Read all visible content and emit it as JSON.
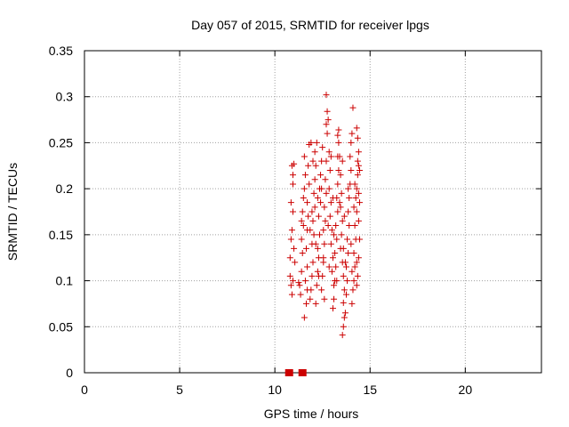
{
  "chart_data": {
    "type": "scatter",
    "title": "Day 057 of 2015, SRMTID for receiver lpgs",
    "xlabel": "GPS time / hours",
    "ylabel": "SRMTID / TECUs",
    "xlim": [
      0,
      24
    ],
    "ylim": [
      0,
      0.35
    ],
    "x_ticks": [
      "0",
      "5",
      "10",
      "15",
      "20"
    ],
    "y_ticks": [
      "0",
      "0.05",
      "0.1",
      "0.15",
      "0.2",
      "0.25",
      "0.3",
      "0.35"
    ],
    "grid": true,
    "legend": "none",
    "colors": {
      "points": "#cc0000",
      "grid": "#a0a0a0",
      "axes": "#000000"
    },
    "baseline_markers": {
      "marker": "square",
      "points": [
        [
          10.75,
          0
        ],
        [
          11.45,
          0
        ]
      ]
    },
    "series": [
      {
        "marker": "plus",
        "points": [
          [
            10.8,
            0.125
          ],
          [
            10.8,
            0.105
          ],
          [
            10.85,
            0.095
          ],
          [
            10.9,
            0.085
          ],
          [
            10.95,
            0.1
          ],
          [
            10.85,
            0.145
          ],
          [
            10.9,
            0.155
          ],
          [
            10.95,
            0.175
          ],
          [
            10.85,
            0.185
          ],
          [
            10.95,
            0.205
          ],
          [
            10.9,
            0.225
          ],
          [
            11.0,
            0.227
          ],
          [
            10.95,
            0.215
          ],
          [
            11.05,
            0.12
          ],
          [
            11.0,
            0.135
          ],
          [
            11.3,
            0.095
          ],
          [
            11.35,
            0.085
          ],
          [
            11.4,
            0.11
          ],
          [
            11.45,
            0.13
          ],
          [
            11.4,
            0.145
          ],
          [
            11.5,
            0.16
          ],
          [
            11.45,
            0.175
          ],
          [
            11.5,
            0.19
          ],
          [
            11.55,
            0.2
          ],
          [
            11.6,
            0.215
          ],
          [
            11.55,
            0.06
          ],
          [
            11.65,
            0.075
          ],
          [
            11.6,
            0.1
          ],
          [
            11.7,
            0.115
          ],
          [
            11.65,
            0.135
          ],
          [
            11.7,
            0.155
          ],
          [
            11.75,
            0.17
          ],
          [
            11.7,
            0.185
          ],
          [
            11.8,
            0.205
          ],
          [
            11.75,
            0.225
          ],
          [
            11.8,
            0.248
          ],
          [
            11.9,
            0.25
          ],
          [
            11.85,
            0.08
          ],
          [
            11.9,
            0.09
          ],
          [
            11.95,
            0.105
          ],
          [
            12.0,
            0.12
          ],
          [
            11.95,
            0.14
          ],
          [
            12.05,
            0.15
          ],
          [
            12.0,
            0.165
          ],
          [
            12.1,
            0.18
          ],
          [
            12.05,
            0.195
          ],
          [
            12.1,
            0.21
          ],
          [
            12.15,
            0.225
          ],
          [
            12.1,
            0.24
          ],
          [
            12.2,
            0.25
          ],
          [
            12.15,
            0.075
          ],
          [
            12.2,
            0.095
          ],
          [
            12.25,
            0.11
          ],
          [
            12.3,
            0.125
          ],
          [
            12.25,
            0.135
          ],
          [
            12.35,
            0.15
          ],
          [
            12.3,
            0.17
          ],
          [
            12.4,
            0.185
          ],
          [
            12.35,
            0.2
          ],
          [
            12.4,
            0.215
          ],
          [
            12.45,
            0.23
          ],
          [
            12.5,
            0.245
          ],
          [
            12.45,
            0.09
          ],
          [
            12.5,
            0.105
          ],
          [
            12.55,
            0.12
          ],
          [
            12.6,
            0.14
          ],
          [
            12.55,
            0.155
          ],
          [
            12.65,
            0.165
          ],
          [
            12.6,
            0.18
          ],
          [
            12.7,
            0.195
          ],
          [
            12.65,
            0.21
          ],
          [
            12.7,
            0.23
          ],
          [
            12.75,
            0.26
          ],
          [
            12.7,
            0.27
          ],
          [
            12.75,
            0.284
          ],
          [
            12.7,
            0.302
          ],
          [
            12.8,
            0.275
          ],
          [
            12.85,
            0.24
          ],
          [
            12.9,
            0.22
          ],
          [
            12.85,
            0.2
          ],
          [
            12.95,
            0.185
          ],
          [
            12.9,
            0.17
          ],
          [
            13.0,
            0.155
          ],
          [
            12.95,
            0.14
          ],
          [
            13.05,
            0.125
          ],
          [
            13.0,
            0.11
          ],
          [
            13.1,
            0.095
          ],
          [
            13.05,
            0.07
          ],
          [
            13.1,
            0.08
          ],
          [
            13.15,
            0.1
          ],
          [
            13.2,
            0.115
          ],
          [
            13.15,
            0.13
          ],
          [
            13.25,
            0.145
          ],
          [
            13.2,
            0.16
          ],
          [
            13.3,
            0.175
          ],
          [
            13.25,
            0.19
          ],
          [
            13.3,
            0.205
          ],
          [
            13.35,
            0.22
          ],
          [
            13.3,
            0.235
          ],
          [
            13.35,
            0.25
          ],
          [
            13.3,
            0.258
          ],
          [
            13.35,
            0.264
          ],
          [
            13.4,
            0.235
          ],
          [
            13.45,
            0.215
          ],
          [
            13.5,
            0.195
          ],
          [
            13.45,
            0.18
          ],
          [
            13.55,
            0.165
          ],
          [
            13.5,
            0.15
          ],
          [
            13.6,
            0.135
          ],
          [
            13.55,
            0.12
          ],
          [
            13.6,
            0.105
          ],
          [
            13.65,
            0.09
          ],
          [
            13.6,
            0.076
          ],
          [
            13.65,
            0.06
          ],
          [
            13.6,
            0.05
          ],
          [
            13.55,
            0.041
          ],
          [
            13.7,
            0.065
          ],
          [
            13.75,
            0.085
          ],
          [
            13.8,
            0.1
          ],
          [
            13.75,
            0.115
          ],
          [
            13.85,
            0.13
          ],
          [
            13.8,
            0.145
          ],
          [
            13.9,
            0.16
          ],
          [
            13.85,
            0.175
          ],
          [
            13.9,
            0.19
          ],
          [
            13.95,
            0.205
          ],
          [
            14.0,
            0.22
          ],
          [
            13.95,
            0.235
          ],
          [
            14.0,
            0.25
          ],
          [
            14.05,
            0.26
          ],
          [
            14.1,
            0.288
          ],
          [
            14.05,
            0.075
          ],
          [
            14.1,
            0.09
          ],
          [
            14.15,
            0.1
          ],
          [
            14.2,
            0.115
          ],
          [
            14.15,
            0.13
          ],
          [
            14.25,
            0.145
          ],
          [
            14.2,
            0.16
          ],
          [
            14.3,
            0.175
          ],
          [
            14.25,
            0.19
          ],
          [
            14.3,
            0.2
          ],
          [
            14.35,
            0.215
          ],
          [
            14.4,
            0.225
          ],
          [
            14.35,
            0.23
          ],
          [
            14.45,
            0.22
          ],
          [
            14.4,
            0.24
          ],
          [
            14.35,
            0.255
          ],
          [
            14.3,
            0.266
          ],
          [
            14.4,
            0.165
          ],
          [
            14.45,
            0.145
          ],
          [
            14.4,
            0.125
          ],
          [
            14.35,
            0.105
          ],
          [
            14.3,
            0.095
          ],
          [
            14.45,
            0.185
          ],
          [
            14.4,
            0.195
          ],
          [
            11.25,
            0.098
          ],
          [
            11.4,
            0.165
          ],
          [
            11.55,
            0.235
          ],
          [
            11.7,
            0.09
          ],
          [
            11.85,
            0.155
          ],
          [
            12.0,
            0.23
          ],
          [
            12.15,
            0.14
          ],
          [
            12.3,
            0.105
          ],
          [
            12.45,
            0.2
          ],
          [
            12.6,
            0.08
          ],
          [
            12.8,
            0.16
          ],
          [
            12.95,
            0.235
          ],
          [
            13.1,
            0.15
          ],
          [
            13.25,
            0.1
          ],
          [
            13.4,
            0.185
          ],
          [
            13.55,
            0.23
          ],
          [
            13.7,
            0.12
          ],
          [
            13.85,
            0.2
          ],
          [
            14.0,
            0.14
          ],
          [
            14.15,
            0.18
          ],
          [
            14.3,
            0.12
          ],
          [
            11.95,
            0.175
          ],
          [
            12.55,
            0.125
          ],
          [
            13.05,
            0.19
          ],
          [
            13.65,
            0.17
          ],
          [
            14.2,
            0.205
          ],
          [
            12.25,
            0.19
          ],
          [
            12.85,
            0.115
          ],
          [
            13.45,
            0.135
          ],
          [
            14.05,
            0.11
          ]
        ]
      }
    ]
  }
}
